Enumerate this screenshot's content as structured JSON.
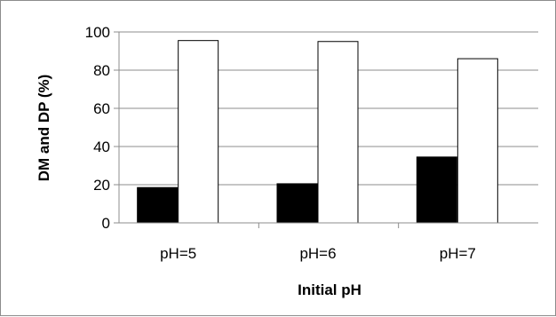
{
  "chart_data": {
    "type": "bar",
    "title": "",
    "xlabel": "Initial pH",
    "ylabel": "DM and DP (%)",
    "categories": [
      "pH=5",
      "pH=6",
      "pH=7"
    ],
    "series": [
      {
        "values": [
          18.5,
          20.5,
          34.5
        ],
        "color": "#000000"
      },
      {
        "values": [
          95.5,
          95,
          86
        ],
        "color": "#ffffff"
      }
    ],
    "ylim": [
      0,
      100
    ],
    "yticks": [
      0,
      20,
      40,
      60,
      80,
      100
    ],
    "grid": true,
    "legend": "none"
  }
}
